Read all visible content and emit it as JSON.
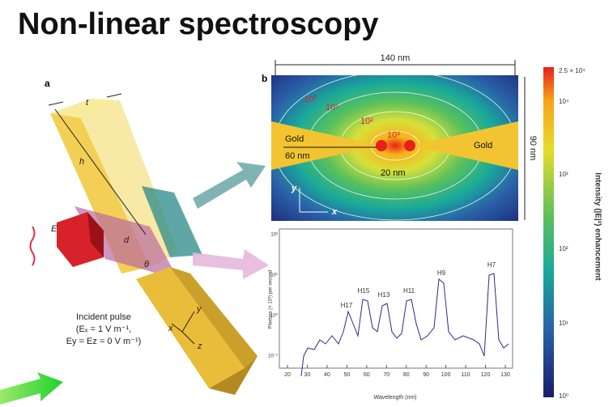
{
  "header": {
    "title": "Non-linear spectroscopy"
  },
  "panel_a": {
    "label": "a",
    "t": "t",
    "h": "h",
    "E": "E",
    "d": "d",
    "theta": "θ",
    "axes": [
      "x",
      "y",
      "z"
    ],
    "caption": [
      "Incident pulse",
      "(Eₓ = 1 V m⁻¹,",
      "Ey = Ez = 0 V m⁻¹)"
    ]
  },
  "panel_b": {
    "label": "b",
    "width": "140 nm",
    "height": "90 nm",
    "contours": [
      "10⁰",
      "10¹",
      "10²",
      "10³"
    ],
    "gold_left": "Gold",
    "gap_left": "60 nm",
    "gold_right": "Gold",
    "gap": "20 nm",
    "axes": [
      "y",
      "x"
    ]
  },
  "colorbar": {
    "ticks": [
      "2.5 × 10⁴",
      "10⁴",
      "10³",
      "10²",
      "10¹",
      "10⁰"
    ],
    "label": "Intensity (|E|²) enhancement"
  },
  "spectrum": {
    "harmonics": [
      "H17",
      "H15",
      "H13",
      "H11",
      "H9",
      "H7"
    ],
    "yticks": [
      "10²",
      "10¹",
      "10⁰",
      "10⁻¹"
    ],
    "ylabel": "Photons (× 10³) per second",
    "xticks": [
      "20",
      "30",
      "40",
      "50",
      "60",
      "70",
      "80",
      "90",
      "100",
      "110",
      "120",
      "130"
    ],
    "xlabel": "Wavelength (nm)"
  }
}
